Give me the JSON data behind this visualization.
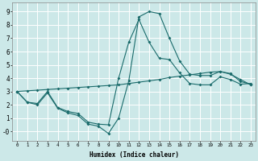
{
  "xlabel": "Humidex (Indice chaleur)",
  "ylabel": "",
  "xlim": [
    -0.5,
    23.5
  ],
  "ylim": [
    -0.7,
    9.7
  ],
  "bg_color": "#cce8e8",
  "line_color": "#1a6b6b",
  "grid_color": "#ffffff",
  "line1_x": [
    0,
    1,
    2,
    3,
    4,
    5,
    6,
    7,
    8,
    9,
    10,
    11,
    12,
    13,
    14,
    15,
    16,
    17,
    18,
    19,
    20,
    21,
    22,
    23
  ],
  "line1_y": [
    3.0,
    2.2,
    2.1,
    3.0,
    1.8,
    1.5,
    1.35,
    0.7,
    0.55,
    0.5,
    4.0,
    6.7,
    8.4,
    6.7,
    5.5,
    5.4,
    4.4,
    3.6,
    3.5,
    3.5,
    4.1,
    3.9,
    3.55,
    3.6
  ],
  "line2_x": [
    0,
    1,
    2,
    3,
    4,
    5,
    6,
    7,
    8,
    9,
    10,
    11,
    12,
    13,
    14,
    15,
    16,
    17,
    18,
    19,
    20,
    21,
    22,
    23
  ],
  "line2_y": [
    3.0,
    2.2,
    2.0,
    2.9,
    1.75,
    1.4,
    1.2,
    0.55,
    0.4,
    -0.15,
    1.0,
    3.8,
    8.6,
    9.0,
    8.85,
    7.0,
    5.3,
    4.3,
    4.2,
    4.2,
    4.5,
    4.3,
    3.9,
    3.5
  ],
  "line3_x": [
    0,
    1,
    2,
    3,
    4,
    5,
    6,
    7,
    8,
    9,
    10,
    11,
    12,
    13,
    14,
    15,
    16,
    17,
    18,
    19,
    20,
    21,
    22,
    23
  ],
  "line3_y": [
    3.0,
    3.05,
    3.1,
    3.15,
    3.2,
    3.25,
    3.3,
    3.35,
    3.4,
    3.45,
    3.5,
    3.6,
    3.7,
    3.8,
    3.9,
    4.05,
    4.15,
    4.25,
    4.35,
    4.45,
    4.5,
    4.35,
    3.75,
    3.55
  ],
  "xticks": [
    0,
    1,
    2,
    3,
    4,
    5,
    6,
    7,
    8,
    9,
    10,
    11,
    12,
    13,
    14,
    15,
    16,
    17,
    18,
    19,
    20,
    21,
    22,
    23
  ],
  "yticks": [
    0,
    1,
    2,
    3,
    4,
    5,
    6,
    7,
    8,
    9
  ],
  "ytick_labels": [
    "-0",
    "1",
    "2",
    "3",
    "4",
    "5",
    "6",
    "7",
    "8",
    "9"
  ]
}
